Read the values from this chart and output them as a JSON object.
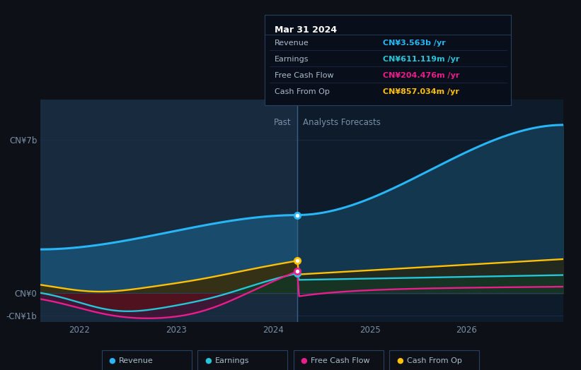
{
  "bg_color": "#0d1117",
  "plot_bg_color": "#0d1b2a",
  "grid_color": "#1e2d3d",
  "y_labels": [
    "CN¥7b",
    "CN¥0",
    "-CN¥1b"
  ],
  "x_labels": [
    "2022",
    "2023",
    "2024",
    "2025",
    "2026"
  ],
  "past_label": "Past",
  "forecast_label": "Analysts Forecasts",
  "divider_x": 2024.25,
  "xlim": [
    2021.6,
    2027.0
  ],
  "ylim": [
    -1300000000.0,
    8800000000.0
  ],
  "y_ticks": [
    7000000000.0,
    0,
    -1000000000.0
  ],
  "colors": {
    "revenue": "#29b6f6",
    "earnings": "#26c6da",
    "free_cash_flow": "#e91e8c",
    "cash_from_op": "#ffc107"
  },
  "tooltip_title": "Mar 31 2024",
  "tooltip_rows": [
    {
      "label": "Revenue",
      "value": "CN¥3.563b /yr",
      "color": "#29b6f6"
    },
    {
      "label": "Earnings",
      "value": "CN¥611.119m /yr",
      "color": "#26c6da"
    },
    {
      "label": "Free Cash Flow",
      "value": "CN¥204.476m /yr",
      "color": "#e91e8c"
    },
    {
      "label": "Cash From Op",
      "value": "CN¥857.034m /yr",
      "color": "#ffc107"
    }
  ],
  "legend": [
    {
      "label": "Revenue",
      "color": "#29b6f6"
    },
    {
      "label": "Earnings",
      "color": "#26c6da"
    },
    {
      "label": "Free Cash Flow",
      "color": "#e91e8c"
    },
    {
      "label": "Cash From Op",
      "color": "#ffc107"
    }
  ]
}
